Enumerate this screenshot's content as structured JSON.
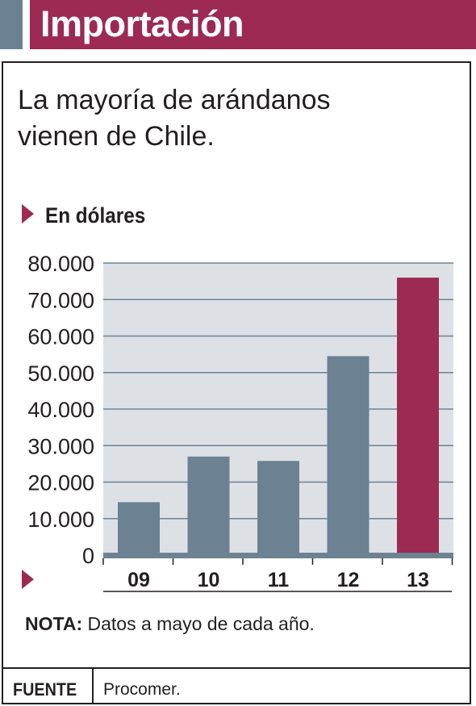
{
  "header": {
    "title": "Importación"
  },
  "subtitle": {
    "line1": "La mayoría de arándanos",
    "line2": "vienen de Chile."
  },
  "unit_label": "En dólares",
  "note": {
    "label": "NOTA:",
    "text": "Datos a mayo de cada año."
  },
  "source": {
    "label": "FUENTE",
    "value": "Procomer."
  },
  "colors": {
    "brand": "#9c2a53",
    "bar": "#6c8293",
    "highlight": "#9c2a53",
    "plot_bg": "#dde1e6",
    "grid": "#6c8293"
  },
  "chart_data": {
    "type": "bar",
    "categories": [
      "09",
      "10",
      "11",
      "12",
      "13"
    ],
    "values": [
      14500,
      27000,
      25800,
      54500,
      76000
    ],
    "highlight_index": 4,
    "ylim": [
      0,
      80000
    ],
    "yticks": [
      0,
      10000,
      20000,
      30000,
      40000,
      50000,
      60000,
      70000,
      80000
    ],
    "ytick_labels": [
      "0",
      "10.000",
      "20.000",
      "30.000",
      "40.000",
      "50.000",
      "60.000",
      "70.000",
      "80.000"
    ],
    "grid": true,
    "ylabel": "En dólares",
    "xlabel": ""
  }
}
